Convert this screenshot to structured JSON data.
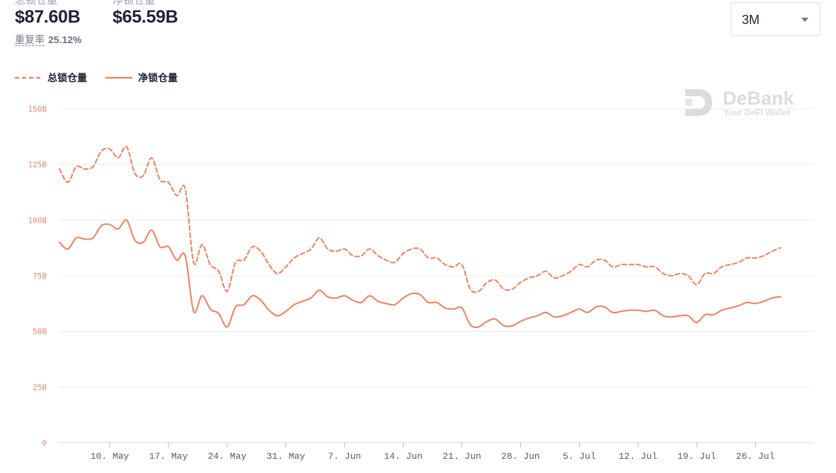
{
  "stats": {
    "total_label": "总锁仓量",
    "total_value": "$87.60B",
    "net_label": "净锁仓量",
    "net_value": "$65.59B",
    "ratio_label": "重复率",
    "ratio_value": "25.12%"
  },
  "period_select": {
    "value": "3M"
  },
  "watermark": {
    "brand": "DeBank",
    "tagline": "Your DeFi Wallet"
  },
  "colors": {
    "series": "#e8896b",
    "grid": "#ececec",
    "axis": "#d8d8d8"
  },
  "chart_data": {
    "type": "line",
    "ylim": [
      0,
      150
    ],
    "y_ticks": [
      0,
      25,
      50,
      75,
      100,
      125,
      150
    ],
    "y_tick_labels": [
      "0",
      "25B",
      "50B",
      "75B",
      "100B",
      "125B",
      "150B"
    ],
    "x_range": [
      "2021-05-04",
      "2021-08-02"
    ],
    "x_ticks": [
      "2021-05-10",
      "2021-05-17",
      "2021-05-24",
      "2021-05-31",
      "2021-06-07",
      "2021-06-14",
      "2021-06-21",
      "2021-06-28",
      "2021-07-05",
      "2021-07-12",
      "2021-07-19",
      "2021-07-26"
    ],
    "x_tick_labels": [
      "10. May",
      "17. May",
      "24. May",
      "31. May",
      "7. Jun",
      "14. Jun",
      "21. Jun",
      "28. Jun",
      "5. Jul",
      "12. Jul",
      "19. Jul",
      "26. Jul"
    ],
    "grid": true,
    "legend_position": "top-left",
    "series": [
      {
        "name": "总锁仓量",
        "style": "dashed",
        "points": [
          [
            "2021-05-04",
            123
          ],
          [
            "2021-05-05",
            117
          ],
          [
            "2021-05-06",
            124
          ],
          [
            "2021-05-07",
            123
          ],
          [
            "2021-05-08",
            124
          ],
          [
            "2021-05-09",
            131
          ],
          [
            "2021-05-10",
            132
          ],
          [
            "2021-05-11",
            128
          ],
          [
            "2021-05-12",
            133
          ],
          [
            "2021-05-13",
            121
          ],
          [
            "2021-05-14",
            120
          ],
          [
            "2021-05-15",
            128
          ],
          [
            "2021-05-16",
            118
          ],
          [
            "2021-05-17",
            117
          ],
          [
            "2021-05-18",
            111
          ],
          [
            "2021-05-19",
            114
          ],
          [
            "2021-05-20",
            81
          ],
          [
            "2021-05-21",
            89
          ],
          [
            "2021-05-22",
            80
          ],
          [
            "2021-05-23",
            77
          ],
          [
            "2021-05-24",
            68
          ],
          [
            "2021-05-25",
            81
          ],
          [
            "2021-05-26",
            82
          ],
          [
            "2021-05-27",
            88
          ],
          [
            "2021-05-28",
            86
          ],
          [
            "2021-05-29",
            80
          ],
          [
            "2021-05-30",
            76
          ],
          [
            "2021-05-31",
            79
          ],
          [
            "2021-06-01",
            83
          ],
          [
            "2021-06-02",
            85
          ],
          [
            "2021-06-03",
            87
          ],
          [
            "2021-06-04",
            92
          ],
          [
            "2021-06-05",
            87
          ],
          [
            "2021-06-06",
            86
          ],
          [
            "2021-06-07",
            87
          ],
          [
            "2021-06-08",
            84
          ],
          [
            "2021-06-09",
            84
          ],
          [
            "2021-06-10",
            87
          ],
          [
            "2021-06-11",
            84
          ],
          [
            "2021-06-12",
            82
          ],
          [
            "2021-06-13",
            81
          ],
          [
            "2021-06-14",
            85
          ],
          [
            "2021-06-15",
            87
          ],
          [
            "2021-06-16",
            87
          ],
          [
            "2021-06-17",
            83
          ],
          [
            "2021-06-18",
            83
          ],
          [
            "2021-06-19",
            80
          ],
          [
            "2021-06-20",
            79
          ],
          [
            "2021-06-21",
            80
          ],
          [
            "2021-06-22",
            69
          ],
          [
            "2021-06-23",
            68
          ],
          [
            "2021-06-24",
            72
          ],
          [
            "2021-06-25",
            73
          ],
          [
            "2021-06-26",
            69
          ],
          [
            "2021-06-27",
            69
          ],
          [
            "2021-06-28",
            72
          ],
          [
            "2021-06-29",
            74
          ],
          [
            "2021-06-30",
            75
          ],
          [
            "2021-07-01",
            77
          ],
          [
            "2021-07-02",
            74
          ],
          [
            "2021-07-03",
            75
          ],
          [
            "2021-07-04",
            77
          ],
          [
            "2021-07-05",
            80
          ],
          [
            "2021-07-06",
            79
          ],
          [
            "2021-07-07",
            82
          ],
          [
            "2021-07-08",
            82
          ],
          [
            "2021-07-09",
            79
          ],
          [
            "2021-07-10",
            80
          ],
          [
            "2021-07-11",
            80
          ],
          [
            "2021-07-12",
            80
          ],
          [
            "2021-07-13",
            79
          ],
          [
            "2021-07-14",
            79
          ],
          [
            "2021-07-15",
            76
          ],
          [
            "2021-07-16",
            75
          ],
          [
            "2021-07-17",
            76
          ],
          [
            "2021-07-18",
            75
          ],
          [
            "2021-07-19",
            71
          ],
          [
            "2021-07-20",
            76
          ],
          [
            "2021-07-21",
            76
          ],
          [
            "2021-07-22",
            79
          ],
          [
            "2021-07-23",
            80
          ],
          [
            "2021-07-24",
            81
          ],
          [
            "2021-07-25",
            83
          ],
          [
            "2021-07-26",
            83
          ],
          [
            "2021-07-27",
            84
          ],
          [
            "2021-07-28",
            86
          ],
          [
            "2021-07-29",
            87.6
          ]
        ]
      },
      {
        "name": "净锁仓量",
        "style": "solid",
        "points": [
          [
            "2021-05-04",
            90
          ],
          [
            "2021-05-05",
            87
          ],
          [
            "2021-05-06",
            92
          ],
          [
            "2021-05-07",
            91.5
          ],
          [
            "2021-05-08",
            92
          ],
          [
            "2021-05-09",
            97.5
          ],
          [
            "2021-05-10",
            98
          ],
          [
            "2021-05-11",
            96
          ],
          [
            "2021-05-12",
            100
          ],
          [
            "2021-05-13",
            91
          ],
          [
            "2021-05-14",
            90
          ],
          [
            "2021-05-15",
            95.5
          ],
          [
            "2021-05-16",
            88
          ],
          [
            "2021-05-17",
            88
          ],
          [
            "2021-05-18",
            82
          ],
          [
            "2021-05-19",
            84
          ],
          [
            "2021-05-20",
            59
          ],
          [
            "2021-05-21",
            66
          ],
          [
            "2021-05-22",
            60
          ],
          [
            "2021-05-23",
            58
          ],
          [
            "2021-05-24",
            52
          ],
          [
            "2021-05-25",
            61
          ],
          [
            "2021-05-26",
            62
          ],
          [
            "2021-05-27",
            66
          ],
          [
            "2021-05-28",
            64
          ],
          [
            "2021-05-29",
            59.5
          ],
          [
            "2021-05-30",
            57
          ],
          [
            "2021-05-31",
            59
          ],
          [
            "2021-06-01",
            62
          ],
          [
            "2021-06-02",
            63.5
          ],
          [
            "2021-06-03",
            65
          ],
          [
            "2021-06-04",
            68.5
          ],
          [
            "2021-06-05",
            65.5
          ],
          [
            "2021-06-06",
            65
          ],
          [
            "2021-06-07",
            66
          ],
          [
            "2021-06-08",
            64
          ],
          [
            "2021-06-09",
            63
          ],
          [
            "2021-06-10",
            66
          ],
          [
            "2021-06-11",
            63.5
          ],
          [
            "2021-06-12",
            62.5
          ],
          [
            "2021-06-13",
            62
          ],
          [
            "2021-06-14",
            65
          ],
          [
            "2021-06-15",
            67
          ],
          [
            "2021-06-16",
            66.5
          ],
          [
            "2021-06-17",
            63
          ],
          [
            "2021-06-18",
            63
          ],
          [
            "2021-06-19",
            60.5
          ],
          [
            "2021-06-20",
            60
          ],
          [
            "2021-06-21",
            60.5
          ],
          [
            "2021-06-22",
            53
          ],
          [
            "2021-06-23",
            52
          ],
          [
            "2021-06-24",
            54.5
          ],
          [
            "2021-06-25",
            55.5
          ],
          [
            "2021-06-26",
            52.5
          ],
          [
            "2021-06-27",
            52.5
          ],
          [
            "2021-06-28",
            54.5
          ],
          [
            "2021-06-29",
            56
          ],
          [
            "2021-06-30",
            57
          ],
          [
            "2021-07-01",
            58.5
          ],
          [
            "2021-07-02",
            56.5
          ],
          [
            "2021-07-03",
            57
          ],
          [
            "2021-07-04",
            58.5
          ],
          [
            "2021-07-05",
            60
          ],
          [
            "2021-07-06",
            58.5
          ],
          [
            "2021-07-07",
            61
          ],
          [
            "2021-07-08",
            61
          ],
          [
            "2021-07-09",
            58.5
          ],
          [
            "2021-07-10",
            59
          ],
          [
            "2021-07-11",
            59.5
          ],
          [
            "2021-07-12",
            59.5
          ],
          [
            "2021-07-13",
            59
          ],
          [
            "2021-07-14",
            59.5
          ],
          [
            "2021-07-15",
            57
          ],
          [
            "2021-07-16",
            56.5
          ],
          [
            "2021-07-17",
            57
          ],
          [
            "2021-07-18",
            57
          ],
          [
            "2021-07-19",
            54
          ],
          [
            "2021-07-20",
            57.5
          ],
          [
            "2021-07-21",
            57.5
          ],
          [
            "2021-07-22",
            59.5
          ],
          [
            "2021-07-23",
            60.5
          ],
          [
            "2021-07-24",
            61.5
          ],
          [
            "2021-07-25",
            63
          ],
          [
            "2021-07-26",
            62.5
          ],
          [
            "2021-07-27",
            63.5
          ],
          [
            "2021-07-28",
            65
          ],
          [
            "2021-07-29",
            65.59
          ]
        ]
      }
    ]
  }
}
